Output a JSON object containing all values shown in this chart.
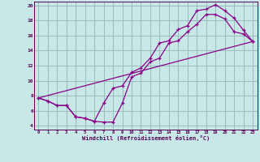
{
  "bg_color": "#c8e8e8",
  "grid_color": "#99bbbb",
  "line_color": "#880088",
  "xlabel": "Windchill (Refroidissement éolien,°C)",
  "xlim": [
    -0.5,
    23.5
  ],
  "ylim": [
    3.5,
    20.5
  ],
  "yticks": [
    4,
    6,
    8,
    10,
    12,
    14,
    16,
    18,
    20
  ],
  "xticks": [
    0,
    1,
    2,
    3,
    4,
    5,
    6,
    7,
    8,
    9,
    10,
    11,
    12,
    13,
    14,
    15,
    16,
    17,
    18,
    19,
    20,
    21,
    22,
    23
  ],
  "line1_x": [
    0,
    1,
    2,
    3,
    4,
    5,
    6,
    7,
    8,
    9,
    10,
    11,
    12,
    13,
    14,
    15,
    16,
    17,
    18,
    19,
    20,
    21,
    22,
    23
  ],
  "line1_y": [
    7.7,
    7.3,
    6.7,
    6.7,
    5.2,
    5.0,
    4.6,
    7.0,
    9.0,
    9.3,
    11.1,
    11.7,
    13.0,
    15.0,
    15.3,
    16.8,
    17.3,
    19.3,
    19.5,
    20.1,
    19.3,
    18.3,
    16.7,
    15.2
  ],
  "line2_x": [
    0,
    1,
    2,
    3,
    4,
    5,
    6,
    7,
    8,
    9,
    10,
    11,
    12,
    13,
    14,
    15,
    16,
    17,
    18,
    19,
    20,
    21,
    22,
    23
  ],
  "line2_y": [
    7.7,
    7.3,
    6.7,
    6.7,
    5.2,
    5.0,
    4.6,
    4.5,
    4.5,
    7.0,
    10.5,
    11.0,
    12.5,
    13.0,
    15.0,
    15.3,
    16.5,
    17.5,
    18.8,
    18.8,
    18.2,
    16.5,
    16.2,
    15.2
  ],
  "line3_x": [
    0,
    23
  ],
  "line3_y": [
    7.7,
    15.2
  ]
}
